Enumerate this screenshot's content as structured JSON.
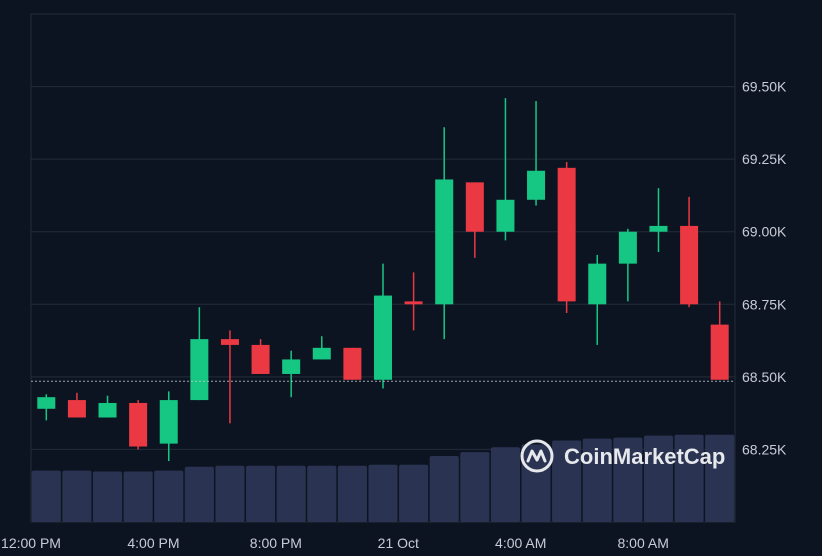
{
  "chart_data": {
    "type": "candlestick",
    "title": "",
    "xlabel": "",
    "ylabel": "",
    "ylim": [
      68000,
      69750
    ],
    "y_ticks": [
      {
        "value": 68250,
        "label": "68.25K"
      },
      {
        "value": 68500,
        "label": "68.50K"
      },
      {
        "value": 68750,
        "label": "68.75K"
      },
      {
        "value": 69000,
        "label": "69.00K"
      },
      {
        "value": 69250,
        "label": "69.25K"
      },
      {
        "value": 69500,
        "label": "69.50K"
      }
    ],
    "x_ticks": [
      {
        "index": -0.5,
        "label": "12:00 PM"
      },
      {
        "index": 3.5,
        "label": "4:00 PM"
      },
      {
        "index": 7.5,
        "label": "8:00 PM"
      },
      {
        "index": 11.5,
        "label": "21 Oct"
      },
      {
        "index": 15.5,
        "label": "4:00 AM"
      },
      {
        "index": 19.5,
        "label": "8:00 AM"
      }
    ],
    "current_price": 68485,
    "grid": true,
    "colors": {
      "up": "#16c784",
      "down": "#ea3943",
      "volume": "#2b3352",
      "grid": "#242c3b",
      "background": "#0d1421"
    },
    "candles": [
      {
        "open": 68390,
        "close": 68430,
        "high": 68440,
        "low": 68350
      },
      {
        "open": 68420,
        "close": 68360,
        "high": 68445,
        "low": 68360
      },
      {
        "open": 68360,
        "close": 68410,
        "high": 68435,
        "low": 68360
      },
      {
        "open": 68410,
        "close": 68260,
        "high": 68420,
        "low": 68250
      },
      {
        "open": 68270,
        "close": 68420,
        "high": 68450,
        "low": 68210
      },
      {
        "open": 68420,
        "close": 68630,
        "high": 68740,
        "low": 68420
      },
      {
        "open": 68630,
        "close": 68610,
        "high": 68660,
        "low": 68340
      },
      {
        "open": 68610,
        "close": 68510,
        "high": 68630,
        "low": 68510
      },
      {
        "open": 68510,
        "close": 68560,
        "high": 68590,
        "low": 68430
      },
      {
        "open": 68560,
        "close": 68600,
        "high": 68640,
        "low": 68560
      },
      {
        "open": 68600,
        "close": 68490,
        "high": 68600,
        "low": 68490
      },
      {
        "open": 68490,
        "close": 68780,
        "high": 68890,
        "low": 68460
      },
      {
        "open": 68760,
        "close": 68750,
        "high": 68860,
        "low": 68660
      },
      {
        "open": 68750,
        "close": 69180,
        "high": 69360,
        "low": 68630
      },
      {
        "open": 69170,
        "close": 69000,
        "high": 69170,
        "low": 68910
      },
      {
        "open": 69000,
        "close": 69110,
        "high": 69460,
        "low": 68970
      },
      {
        "open": 69110,
        "close": 69210,
        "high": 69450,
        "low": 69090
      },
      {
        "open": 69220,
        "close": 68760,
        "high": 69240,
        "low": 68720
      },
      {
        "open": 68750,
        "close": 68890,
        "high": 68920,
        "low": 68610
      },
      {
        "open": 68890,
        "close": 69000,
        "high": 69010,
        "low": 68760
      },
      {
        "open": 69000,
        "close": 69020,
        "high": 69150,
        "low": 68930
      },
      {
        "open": 69020,
        "close": 68750,
        "high": 69120,
        "low": 68740
      },
      {
        "open": 68680,
        "close": 68490,
        "high": 68760,
        "low": 68490
      }
    ],
    "volume": [
      0.53,
      0.53,
      0.52,
      0.52,
      0.53,
      0.57,
      0.58,
      0.58,
      0.58,
      0.58,
      0.58,
      0.59,
      0.59,
      0.68,
      0.72,
      0.77,
      0.8,
      0.84,
      0.86,
      0.87,
      0.89,
      0.9,
      0.9
    ]
  },
  "watermark": {
    "text": "CoinMarketCap",
    "icon": "coinmarketcap-logo-icon"
  }
}
